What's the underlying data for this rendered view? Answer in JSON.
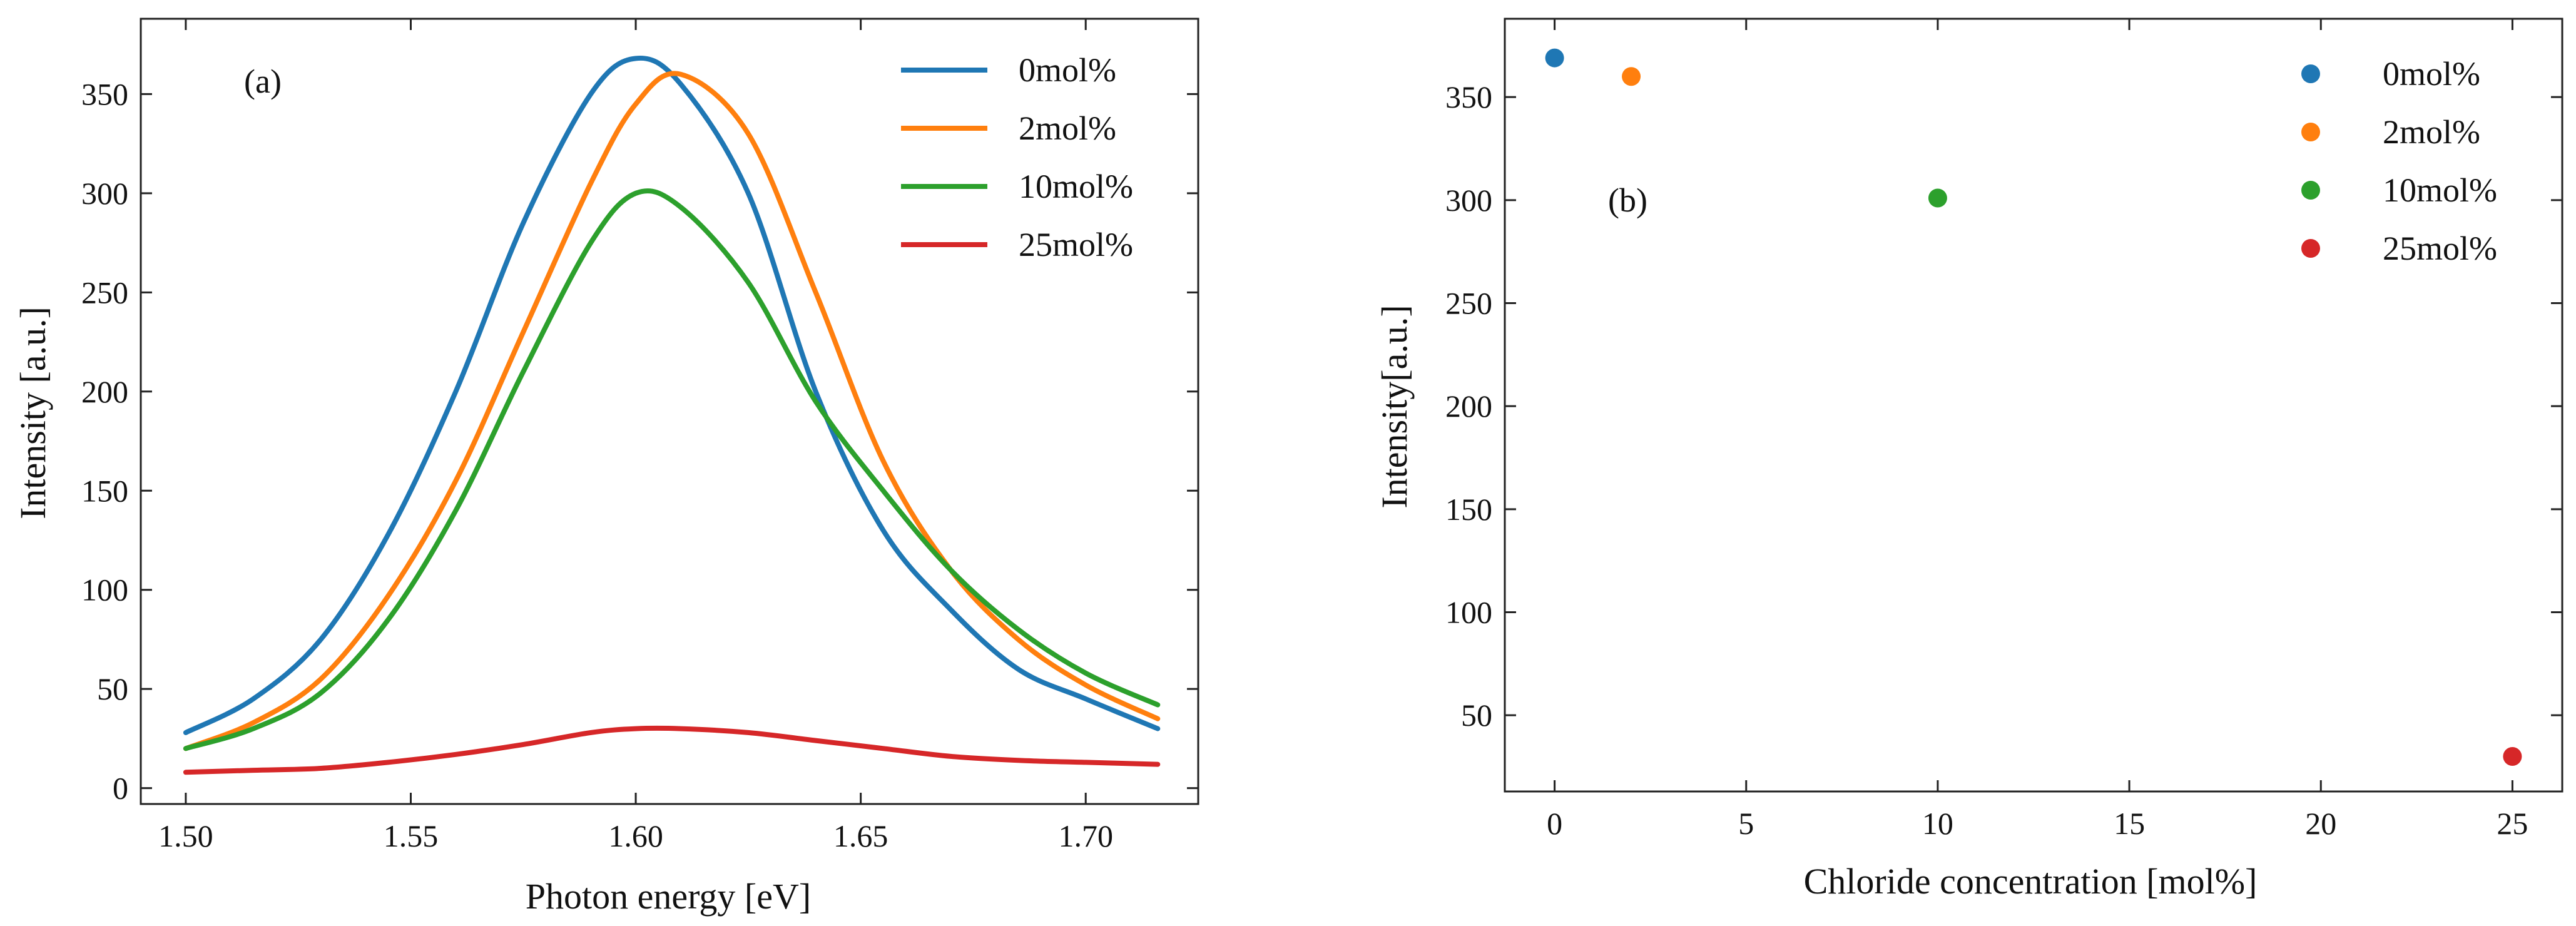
{
  "chart_data": [
    {
      "type": "line",
      "panel_label": "(a)",
      "title": "",
      "xlabel": "Photon energy [eV]",
      "ylabel": "Intensity [a.u.]",
      "xlim": [
        1.49,
        1.725
      ],
      "ylim": [
        -8,
        388
      ],
      "x_ticks": [
        1.5,
        1.55,
        1.6,
        1.65,
        1.7
      ],
      "x_tick_labels": [
        "1.50",
        "1.55",
        "1.60",
        "1.65",
        "1.70"
      ],
      "y_ticks": [
        0,
        50,
        100,
        150,
        200,
        250,
        300,
        350
      ],
      "y_tick_labels": [
        "0",
        "50",
        "100",
        "150",
        "200",
        "250",
        "300",
        "350"
      ],
      "grid": false,
      "legend_position": "top-right",
      "x": [
        1.5,
        1.515,
        1.53,
        1.545,
        1.56,
        1.575,
        1.59,
        1.6,
        1.61,
        1.625,
        1.64,
        1.655,
        1.67,
        1.685,
        1.7,
        1.716
      ],
      "series": [
        {
          "name": "0mol%",
          "color": "#1f77b4",
          "values": [
            28,
            45,
            75,
            128,
            200,
            285,
            350,
            368,
            355,
            300,
            200,
            130,
            90,
            60,
            45,
            30
          ]
        },
        {
          "name": "2mol%",
          "color": "#ff7f0e",
          "values": [
            20,
            33,
            55,
            97,
            155,
            230,
            305,
            345,
            360,
            330,
            250,
            165,
            110,
            75,
            52,
            35
          ]
        },
        {
          "name": "10mol%",
          "color": "#2ca02c",
          "values": [
            20,
            30,
            48,
            85,
            140,
            210,
            275,
            300,
            293,
            255,
            195,
            150,
            110,
            80,
            58,
            42
          ]
        },
        {
          "name": "25mol%",
          "color": "#d62728",
          "values": [
            8,
            9,
            10,
            13,
            17,
            22,
            28,
            30,
            30,
            28,
            24,
            20,
            16,
            14,
            13,
            12
          ]
        }
      ]
    },
    {
      "type": "scatter",
      "panel_label": "(b)",
      "title": "",
      "xlabel": "Chloride concentration [mol%]",
      "ylabel": "Intensity[a.u.]",
      "xlim": [
        -1.3,
        26.3
      ],
      "ylim": [
        13,
        388
      ],
      "x_ticks": [
        0,
        5,
        10,
        15,
        20,
        25
      ],
      "x_tick_labels": [
        "0",
        "5",
        "10",
        "15",
        "20",
        "25"
      ],
      "y_ticks": [
        50,
        100,
        150,
        200,
        250,
        300,
        350
      ],
      "y_tick_labels": [
        "50",
        "100",
        "150",
        "200",
        "250",
        "300",
        "350"
      ],
      "grid": false,
      "legend_position": "top-right",
      "series": [
        {
          "name": "0mol%",
          "color": "#1f77b4",
          "x": [
            0
          ],
          "values": [
            369
          ]
        },
        {
          "name": "2mol%",
          "color": "#ff7f0e",
          "x": [
            2
          ],
          "values": [
            360
          ]
        },
        {
          "name": "10mol%",
          "color": "#2ca02c",
          "x": [
            10
          ],
          "values": [
            301
          ]
        },
        {
          "name": "25mol%",
          "color": "#d62728",
          "x": [
            25
          ],
          "values": [
            30
          ]
        }
      ]
    }
  ]
}
